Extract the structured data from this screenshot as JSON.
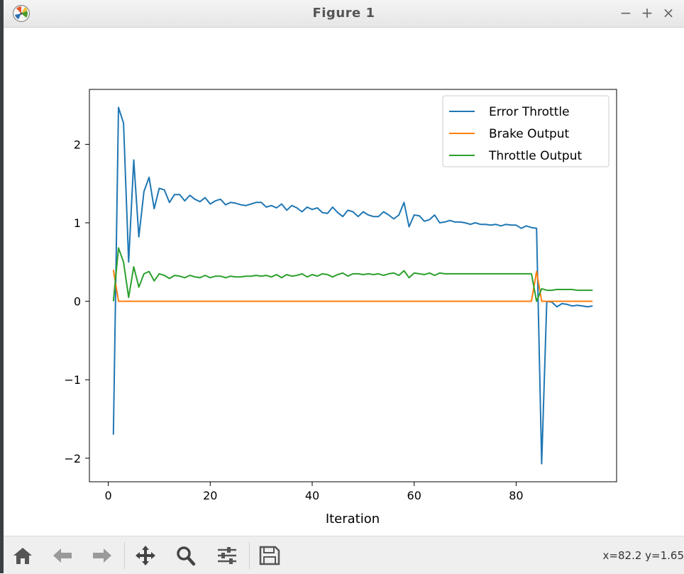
{
  "window": {
    "title": "Figure 1",
    "minimize_glyph": "−",
    "maximize_glyph": "+",
    "close_glyph": "×"
  },
  "toolbar": {
    "buttons": [
      "home-icon",
      "back-arrow-icon",
      "forward-arrow-icon",
      "pan-icon",
      "zoom-icon",
      "configure-subplots-icon",
      "save-icon"
    ],
    "coords_text": "x=82.2 y=1.65"
  },
  "chart_data": {
    "type": "line",
    "xlabel": "Iteration",
    "ylabel": "",
    "title": "",
    "xlim": [
      -3.7,
      99.7
    ],
    "ylim": [
      -2.3,
      2.7
    ],
    "xticks": [
      0,
      20,
      40,
      60,
      80
    ],
    "yticks": [
      -2,
      -1,
      0,
      1,
      2
    ],
    "ytick_labels": [
      "−2",
      "−1",
      "0",
      "1",
      "2"
    ],
    "legend_position": "upper-right",
    "series": [
      {
        "name": "Error Throttle",
        "color": "#1f77b4",
        "x": [
          1,
          2,
          3,
          4,
          5,
          6,
          7,
          8,
          9,
          10,
          11,
          12,
          13,
          14,
          15,
          16,
          17,
          18,
          19,
          20,
          21,
          22,
          23,
          24,
          25,
          26,
          27,
          28,
          29,
          30,
          31,
          32,
          33,
          34,
          35,
          36,
          37,
          38,
          39,
          40,
          41,
          42,
          43,
          44,
          45,
          46,
          47,
          48,
          49,
          50,
          51,
          52,
          53,
          54,
          55,
          56,
          57,
          58,
          59,
          60,
          61,
          62,
          63,
          64,
          65,
          66,
          67,
          68,
          69,
          70,
          71,
          72,
          73,
          74,
          75,
          76,
          77,
          78,
          79,
          80,
          81,
          82,
          83,
          84,
          85,
          86,
          87,
          88,
          89,
          90,
          91,
          92,
          93,
          94,
          95
        ],
        "values": [
          -1.7,
          2.47,
          2.27,
          0.5,
          1.8,
          0.82,
          1.4,
          1.58,
          1.18,
          1.44,
          1.42,
          1.26,
          1.36,
          1.36,
          1.28,
          1.35,
          1.3,
          1.27,
          1.32,
          1.24,
          1.28,
          1.3,
          1.23,
          1.26,
          1.25,
          1.23,
          1.22,
          1.24,
          1.26,
          1.26,
          1.2,
          1.22,
          1.19,
          1.24,
          1.16,
          1.22,
          1.19,
          1.14,
          1.2,
          1.17,
          1.19,
          1.13,
          1.12,
          1.2,
          1.13,
          1.08,
          1.16,
          1.14,
          1.08,
          1.14,
          1.1,
          1.08,
          1.08,
          1.14,
          1.1,
          1.05,
          1.1,
          1.26,
          0.95,
          1.1,
          1.09,
          1.02,
          1.04,
          1.1,
          1.0,
          1.01,
          1.03,
          1.01,
          1.01,
          1.0,
          0.98,
          1.0,
          0.98,
          0.98,
          0.97,
          0.98,
          0.96,
          0.98,
          0.97,
          0.97,
          0.93,
          0.96,
          0.94,
          0.93,
          -2.07,
          0.0,
          -0.01,
          -0.07,
          -0.03,
          -0.04,
          -0.06,
          -0.05,
          -0.06,
          -0.07,
          -0.06
        ]
      },
      {
        "name": "Brake Output",
        "color": "#ff7f0e",
        "x": [
          1,
          2,
          3,
          82,
          83,
          84,
          85,
          95
        ],
        "values": [
          0.4,
          0.0,
          0.0,
          0.0,
          0.0,
          0.38,
          0.0,
          0.0
        ]
      },
      {
        "name": "Throttle Output",
        "color": "#2ca02c",
        "x": [
          1,
          2,
          3,
          4,
          5,
          6,
          7,
          8,
          9,
          10,
          11,
          12,
          13,
          14,
          15,
          16,
          17,
          18,
          19,
          20,
          21,
          22,
          23,
          24,
          25,
          26,
          27,
          28,
          29,
          30,
          31,
          32,
          33,
          34,
          35,
          36,
          37,
          38,
          39,
          40,
          41,
          42,
          43,
          44,
          45,
          46,
          47,
          48,
          49,
          50,
          51,
          52,
          53,
          54,
          55,
          56,
          57,
          58,
          59,
          60,
          61,
          62,
          63,
          64,
          65,
          66,
          67,
          68,
          69,
          70,
          71,
          72,
          73,
          74,
          75,
          76,
          77,
          78,
          79,
          80,
          81,
          82,
          83,
          84,
          85,
          86,
          87,
          88,
          89,
          90,
          91,
          92,
          93,
          94,
          95
        ],
        "values": [
          0.0,
          0.68,
          0.5,
          0.05,
          0.44,
          0.18,
          0.35,
          0.38,
          0.26,
          0.35,
          0.33,
          0.29,
          0.33,
          0.32,
          0.3,
          0.33,
          0.31,
          0.3,
          0.33,
          0.3,
          0.32,
          0.32,
          0.3,
          0.32,
          0.31,
          0.31,
          0.32,
          0.32,
          0.33,
          0.32,
          0.33,
          0.31,
          0.34,
          0.3,
          0.34,
          0.32,
          0.33,
          0.35,
          0.31,
          0.34,
          0.32,
          0.35,
          0.34,
          0.31,
          0.34,
          0.36,
          0.32,
          0.35,
          0.35,
          0.34,
          0.35,
          0.34,
          0.35,
          0.33,
          0.35,
          0.36,
          0.33,
          0.39,
          0.3,
          0.36,
          0.35,
          0.34,
          0.36,
          0.33,
          0.36,
          0.35,
          0.35,
          0.35,
          0.35,
          0.35,
          0.35,
          0.35,
          0.35,
          0.35,
          0.35,
          0.35,
          0.35,
          0.35,
          0.35,
          0.35,
          0.35,
          0.35,
          0.35,
          0.0,
          0.16,
          0.14,
          0.14,
          0.15,
          0.15,
          0.15,
          0.15,
          0.14,
          0.14,
          0.14,
          0.14
        ]
      }
    ]
  }
}
